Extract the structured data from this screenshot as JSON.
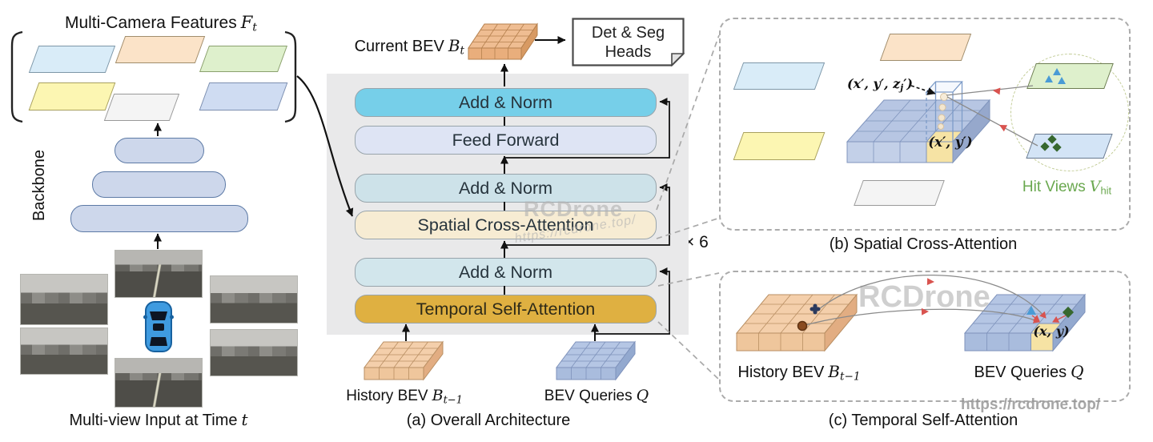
{
  "left": {
    "title_text": "Multi-Camera Features",
    "title_var": "F",
    "title_sub": "t",
    "backbone_label": "Backbone",
    "caption_text": "Multi-view Input at Time",
    "caption_var": "t"
  },
  "architecture": {
    "current_bev_text": "Current BEV",
    "current_bev_var": "B",
    "current_bev_sub": "t",
    "det_seg_line1": "Det & Seg",
    "det_seg_line2": "Heads",
    "blocks": [
      {
        "id": "add-norm-1",
        "label": "Add & Norm",
        "color": "#76cfe9"
      },
      {
        "id": "feed-forward",
        "label": "Feed Forward",
        "color": "#dee4f4"
      },
      {
        "id": "add-norm-2",
        "label": "Add & Norm",
        "color": "#cde2e9"
      },
      {
        "id": "spatial-cross-attention",
        "label": "Spatial Cross-Attention",
        "color": "#f7ecd3"
      },
      {
        "id": "add-norm-3",
        "label": "Add & Norm",
        "color": "#d2e6ec"
      },
      {
        "id": "temporal-self-attention",
        "label": "Temporal Self-Attention",
        "color": "#dfb041"
      }
    ],
    "multiplier": "× 6",
    "history_text": "History BEV",
    "history_var": "B",
    "history_sub": "t−1",
    "queries_text": "BEV Queries",
    "queries_var": "Q",
    "caption": "(a) Overall Architecture"
  },
  "panel_b": {
    "caption": "(b) Spatial Cross-Attention",
    "ref_point_3d_pre": "(x′, y′, z",
    "ref_point_3d_sub": "j",
    "ref_point_3d_post": "′)",
    "ref_point_2d": "(x′, y′)",
    "hit_views_text": "Hit Views",
    "hit_views_var": "V",
    "hit_views_sub": "hit"
  },
  "panel_c": {
    "caption": "(c) Temporal Self-Attention",
    "history_text": "History BEV",
    "history_var": "B",
    "history_sub": "t−1",
    "queries_text": "BEV Queries",
    "queries_var": "Q",
    "query_point": "(x, y)"
  },
  "watermarks": {
    "brand_center": "RCDrone",
    "url_center": "https://rcdrone.top/",
    "brand_right": "RCDrone",
    "url_right": "https://rcdrone.top/"
  },
  "colors": {
    "add_norm_primary": "#76cfe9",
    "add_norm_light": "#cfe4ea",
    "feed_forward": "#dee4f4",
    "spatial_attention": "#f7ecd3",
    "temporal_attention": "#dfb041",
    "panel_background": "#e9e9ea",
    "bev_orange": "#f0c49b",
    "bev_blue": "#b7c7e6",
    "highlight_cell": "#f6e3a4",
    "hit_views_green": "#6aa84f",
    "watermark_gray": "#b9b9b9"
  }
}
